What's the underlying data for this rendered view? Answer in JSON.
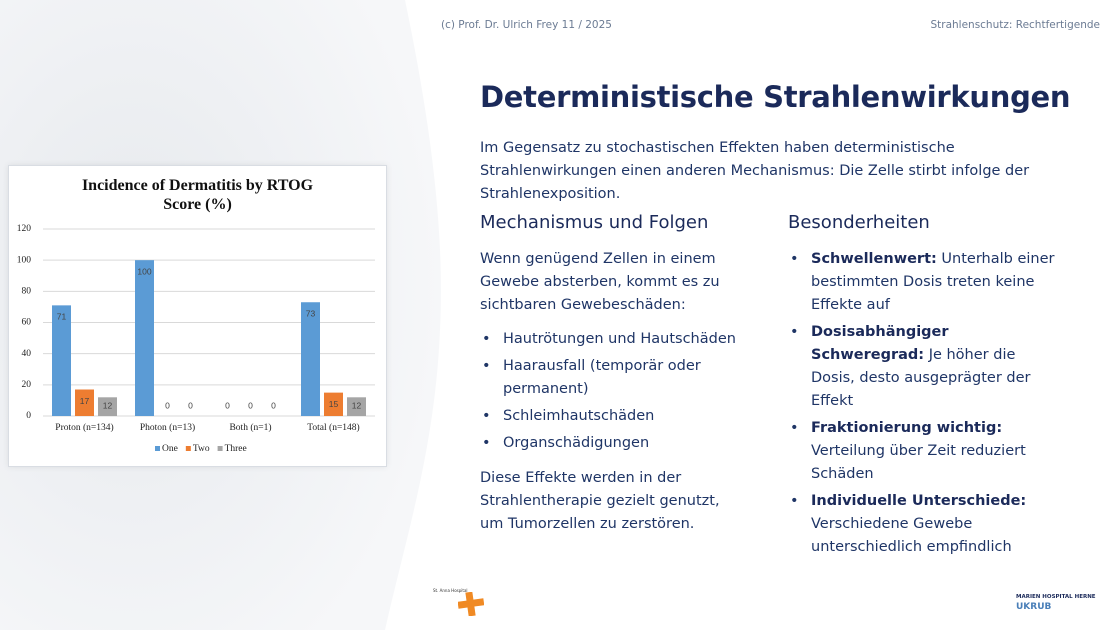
{
  "header": {
    "left": "(c) Prof. Dr. Ulrich Frey 11 / 2025",
    "right": "Strahlenschutz: Rechtfertigende"
  },
  "title": "Deterministische Strahlenwirkungen",
  "intro": "Im Gegensatz zu stochastischen Effekten haben deterministische Strahlenwirkungen einen anderen Mechanismus: Die Zelle stirbt infolge der Strahlenexposition.",
  "left_column": {
    "heading": "Mechanismus und Folgen",
    "intro": "Wenn genügend Zellen in einem Gewebe absterben, kommt es zu sichtbaren Gewebeschäden:",
    "bullets": [
      "Hautrötungen und Hautschäden",
      "Haarausfall (temporär oder permanent)",
      "Schleimhautschäden",
      "Organschädigungen"
    ],
    "outro": "Diese Effekte werden in der Strahlentherapie gezielt genutzt, um Tumorzellen zu zerstören."
  },
  "right_column": {
    "heading": "Besonderheiten",
    "items": [
      {
        "term": "Schwellenwert:",
        "text": "Unterhalb einer bestimmten Dosis treten keine Effekte auf"
      },
      {
        "term": "Dosisabhängiger Schweregrad:",
        "text": "Je höher die Dosis, desto ausgeprägter der Effekt"
      },
      {
        "term": "Fraktionierung wichtig:",
        "text": "Verteilung über Zeit reduziert Schäden"
      },
      {
        "term": "Individuelle Unterschiede:",
        "text": "Verschiedene Gewebe unterschiedlich empfindlich"
      }
    ]
  },
  "logos": {
    "left": "St. Anna Hospital",
    "right": "MARIEN HOSPITAL HERNE",
    "right_sub": "UKRUB"
  },
  "chart_data": {
    "type": "bar",
    "title": "Incidence of Dermatitis by RTOG Score (%)",
    "categories": [
      "Proton (n=134)",
      "Photon (n=13)",
      "Both (n=1)",
      "Total (n=148)"
    ],
    "series": [
      {
        "name": "One",
        "color": "#5b9bd5",
        "values": [
          71,
          100,
          0,
          73
        ]
      },
      {
        "name": "Two",
        "color": "#ed7d31",
        "values": [
          17,
          0,
          0,
          15
        ]
      },
      {
        "name": "Three",
        "color": "#a5a5a5",
        "values": [
          12,
          0,
          0,
          12
        ]
      }
    ],
    "ylim": [
      0,
      120
    ],
    "yticks": [
      0,
      20,
      40,
      60,
      80,
      100,
      120
    ],
    "grid": true
  }
}
